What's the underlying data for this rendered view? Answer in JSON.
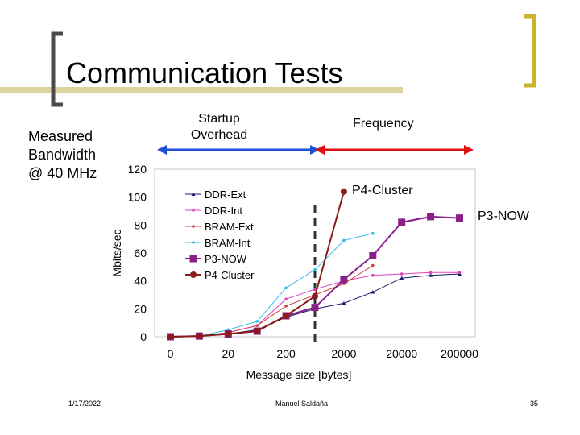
{
  "slide": {
    "title": "Communication Tests",
    "side_label": "Measured\nBandwidth\n@ 40 MHz",
    "startup_label": "Startup\nOverhead",
    "frequency_label": "Frequency",
    "footer_date": "1/17/2022",
    "footer_author": "Manuel Saldaña",
    "footer_page": "35"
  },
  "colors": {
    "accent": "#c9b52a",
    "startup_arrow": "#1f4fd6",
    "frequency_arrow": "#e01010"
  },
  "chart_data": {
    "type": "line",
    "xlabel": "Message size [bytes]",
    "ylabel": "Mbits/sec",
    "categories": [
      "0",
      "",
      "20",
      "",
      "200",
      "",
      "2000",
      "",
      "20000",
      "",
      "200000"
    ],
    "ylim": [
      0,
      120
    ],
    "yticks": [
      0,
      20,
      40,
      60,
      80,
      100,
      120
    ],
    "grid": false,
    "legend_position": "top-left",
    "series": [
      {
        "name": "DDR-Ext",
        "color": "#1a1a6e",
        "marker": "triangle",
        "values": [
          0,
          0.5,
          2,
          5,
          14,
          20,
          24,
          32,
          42,
          44,
          45
        ]
      },
      {
        "name": "DDR-Int",
        "color": "#e040c0",
        "marker": "dot",
        "values": [
          0,
          0.5,
          3,
          8,
          27,
          34,
          40,
          44,
          45,
          46,
          46
        ]
      },
      {
        "name": "BRAM-Ext",
        "color": "#d04040",
        "marker": "dot",
        "values": [
          0,
          0.5,
          3,
          8,
          22,
          30,
          38,
          51,
          null,
          null,
          null
        ]
      },
      {
        "name": "BRAM-Int",
        "color": "#33bde8",
        "marker": "dot",
        "values": [
          0,
          0.5,
          5,
          11,
          35,
          48,
          69,
          74,
          null,
          null,
          null
        ]
      },
      {
        "name": "P3-NOW",
        "color": "#8a1f8a",
        "marker": "square",
        "values": [
          0,
          0.5,
          2,
          4,
          15,
          21,
          41,
          58,
          82,
          86,
          85
        ]
      },
      {
        "name": "P4-Cluster",
        "color": "#8b1a1a",
        "marker": "circle",
        "values": [
          0,
          0.5,
          2,
          4,
          15,
          29,
          104,
          null,
          null,
          null,
          null
        ]
      }
    ],
    "annotations": [
      {
        "text": "P4-Cluster"
      },
      {
        "text": "P3-NOW"
      }
    ]
  }
}
